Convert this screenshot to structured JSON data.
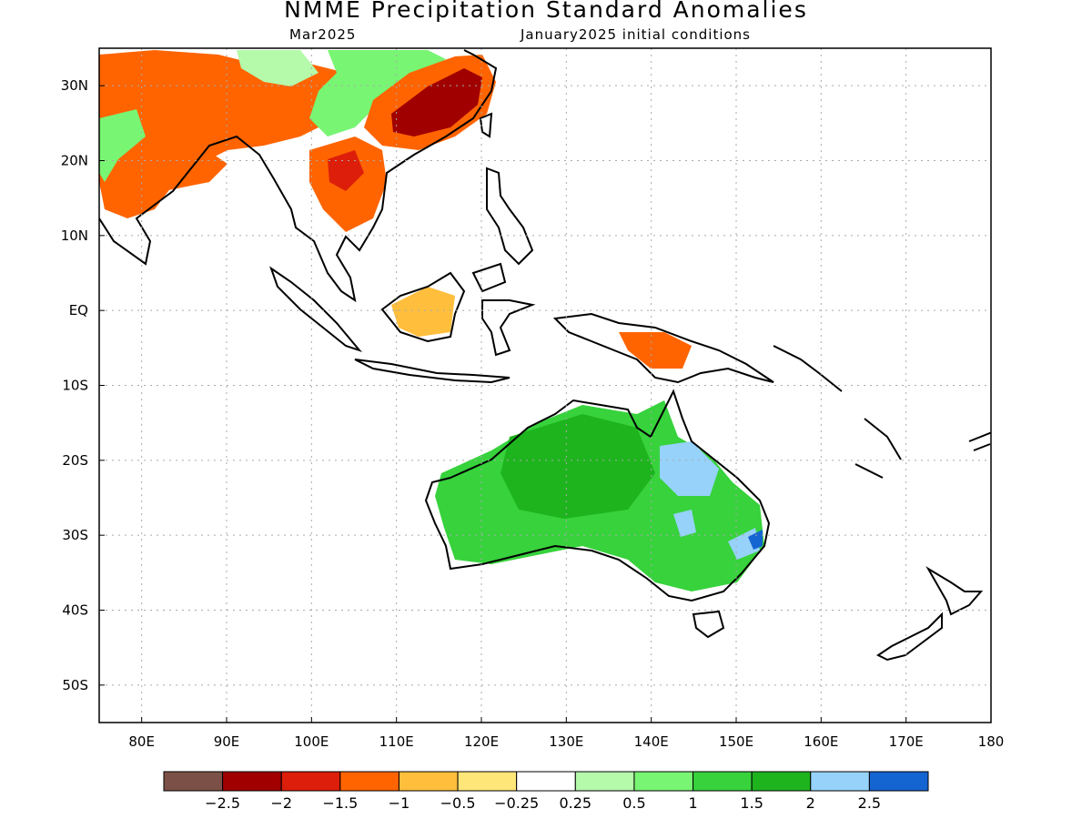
{
  "title": "NMME Precipitation Standard Anomalies",
  "valid_month": "Mar2025",
  "initial_conditions": "January2025 initial conditions",
  "map": {
    "lon_range": [
      75,
      180
    ],
    "lat_range": [
      -55,
      35
    ],
    "lon_ticks": [
      {
        "lon": 80,
        "label": "80E"
      },
      {
        "lon": 90,
        "label": "90E"
      },
      {
        "lon": 100,
        "label": "100E"
      },
      {
        "lon": 110,
        "label": "110E"
      },
      {
        "lon": 120,
        "label": "120E"
      },
      {
        "lon": 130,
        "label": "130E"
      },
      {
        "lon": 140,
        "label": "140E"
      },
      {
        "lon": 150,
        "label": "150E"
      },
      {
        "lon": 160,
        "label": "160E"
      },
      {
        "lon": 170,
        "label": "170E"
      },
      {
        "lon": 180,
        "label": "180"
      }
    ],
    "lat_ticks": [
      {
        "lat": 30,
        "label": "30N"
      },
      {
        "lat": 20,
        "label": "20N"
      },
      {
        "lat": 10,
        "label": "10N"
      },
      {
        "lat": 0,
        "label": "EQ"
      },
      {
        "lat": -10,
        "label": "10S"
      },
      {
        "lat": -20,
        "label": "20S"
      },
      {
        "lat": -30,
        "label": "30S"
      },
      {
        "lat": -40,
        "label": "40S"
      },
      {
        "lat": -50,
        "label": "50S"
      }
    ],
    "grid": true
  },
  "colorbar": {
    "colors": [
      "#7b5046",
      "#a00000",
      "#dc1e0a",
      "#ff6400",
      "#ffbe3c",
      "#ffe678",
      "#ffffff",
      "#b4faaa",
      "#78f573",
      "#37d23c",
      "#1eb41e",
      "#96d2fa",
      "#1464d2"
    ],
    "labels": [
      "-2.5",
      "-2",
      "-1.5",
      "-1",
      "-0.5",
      "-0.25",
      "0.25",
      "0.5",
      "1",
      "1.5",
      "2",
      "2.5"
    ]
  },
  "anomaly_regions": [
    {
      "region": "south-china",
      "value": -2
    },
    {
      "region": "south-china-edge",
      "value": -1
    },
    {
      "region": "tibet-north-india",
      "value": -1
    },
    {
      "region": "himalaya-green",
      "value": 0.5
    },
    {
      "region": "central-china",
      "value": 1
    },
    {
      "region": "indochina",
      "value": -1
    },
    {
      "region": "indochina-core",
      "value": -1.5
    },
    {
      "region": "east-india",
      "value": -1
    },
    {
      "region": "peninsula-india",
      "value": 1
    },
    {
      "region": "borneo",
      "value": -0.5
    },
    {
      "region": "new-guinea",
      "value": -1
    },
    {
      "region": "australia",
      "value": 1.5
    },
    {
      "region": "australia-north",
      "value": 2
    },
    {
      "region": "queensland-east",
      "value": 2.5
    },
    {
      "region": "queensland-coast",
      "value": 3
    }
  ]
}
